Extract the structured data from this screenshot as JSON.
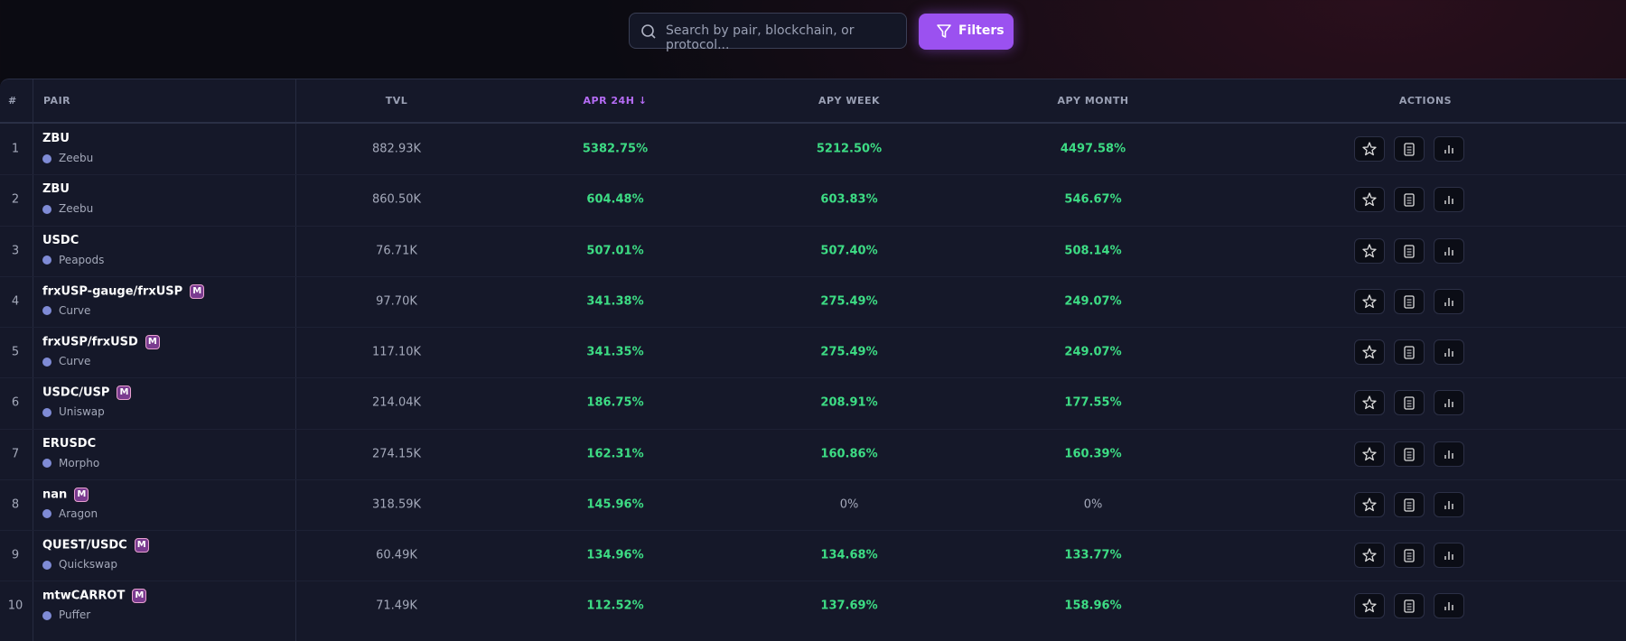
{
  "search": {
    "placeholder": "Search by pair, blockchain, or protocol...",
    "button": "Filters"
  },
  "table": {
    "columns": {
      "rank": "#",
      "pair": "PAIR",
      "tvl": "TVL",
      "apr_24h": "APR 24H ↓",
      "apy_week": "APY WEEK",
      "apy_month": "APY MONTH",
      "actions": "ACTIONS"
    },
    "rows": [
      {
        "rank": 1,
        "pair": "ZBU",
        "protocol": "Zeebu",
        "tvl": "882.93K",
        "apr_24h": "5382.75%",
        "apy_week": "5212.50%",
        "apy_month": "4497.58%"
      },
      {
        "rank": 2,
        "pair": "ZBU",
        "protocol": "Zeebu",
        "tvl": "860.50K",
        "apr_24h": "604.48%",
        "apy_week": "603.83%",
        "apy_month": "546.67%"
      },
      {
        "rank": 3,
        "pair": "USDC",
        "protocol": "Peapods",
        "tvl": "76.71K",
        "apr_24h": "507.01%",
        "apy_week": "507.40%",
        "apy_month": "508.14%"
      },
      {
        "rank": 4,
        "pair": "frxUSP-gauge/frxUSP",
        "badge": "M",
        "protocol": "Curve",
        "tvl": "97.70K",
        "apr_24h": "341.38%",
        "apy_week": "275.49%",
        "apy_month": "249.07%"
      },
      {
        "rank": 5,
        "pair": "frxUSP/frxUSD",
        "badge": "M",
        "protocol": "Curve",
        "tvl": "117.10K",
        "apr_24h": "341.35%",
        "apy_week": "275.49%",
        "apy_month": "249.07%"
      },
      {
        "rank": 6,
        "pair": "USDC/USP",
        "badge": "M",
        "protocol": "Uniswap",
        "tvl": "214.04K",
        "apr_24h": "186.75%",
        "apy_week": "208.91%",
        "apy_month": "177.55%"
      },
      {
        "rank": 7,
        "pair": "ERUSDC",
        "protocol": "Morpho",
        "tvl": "274.15K",
        "apr_24h": "162.31%",
        "apy_week": "160.86%",
        "apy_month": "160.39%"
      },
      {
        "rank": 8,
        "pair": "nan",
        "badge": "M",
        "protocol": "Aragon",
        "tvl": "318.59K",
        "apr_24h": "145.96%",
        "apy_week": "0%",
        "apy_month": "0%"
      },
      {
        "rank": 9,
        "pair": "QUEST/USDC",
        "badge": "M",
        "protocol": "Quickswap",
        "tvl": "60.49K",
        "apr_24h": "134.96%",
        "apy_week": "134.68%",
        "apy_month": "133.77%"
      },
      {
        "rank": 10,
        "pair": "mtwCARROT",
        "badge": "M",
        "protocol": "Puffer",
        "tvl": "71.49K",
        "apr_24h": "112.52%",
        "apy_week": "137.69%",
        "apy_month": "158.96%"
      }
    ]
  }
}
